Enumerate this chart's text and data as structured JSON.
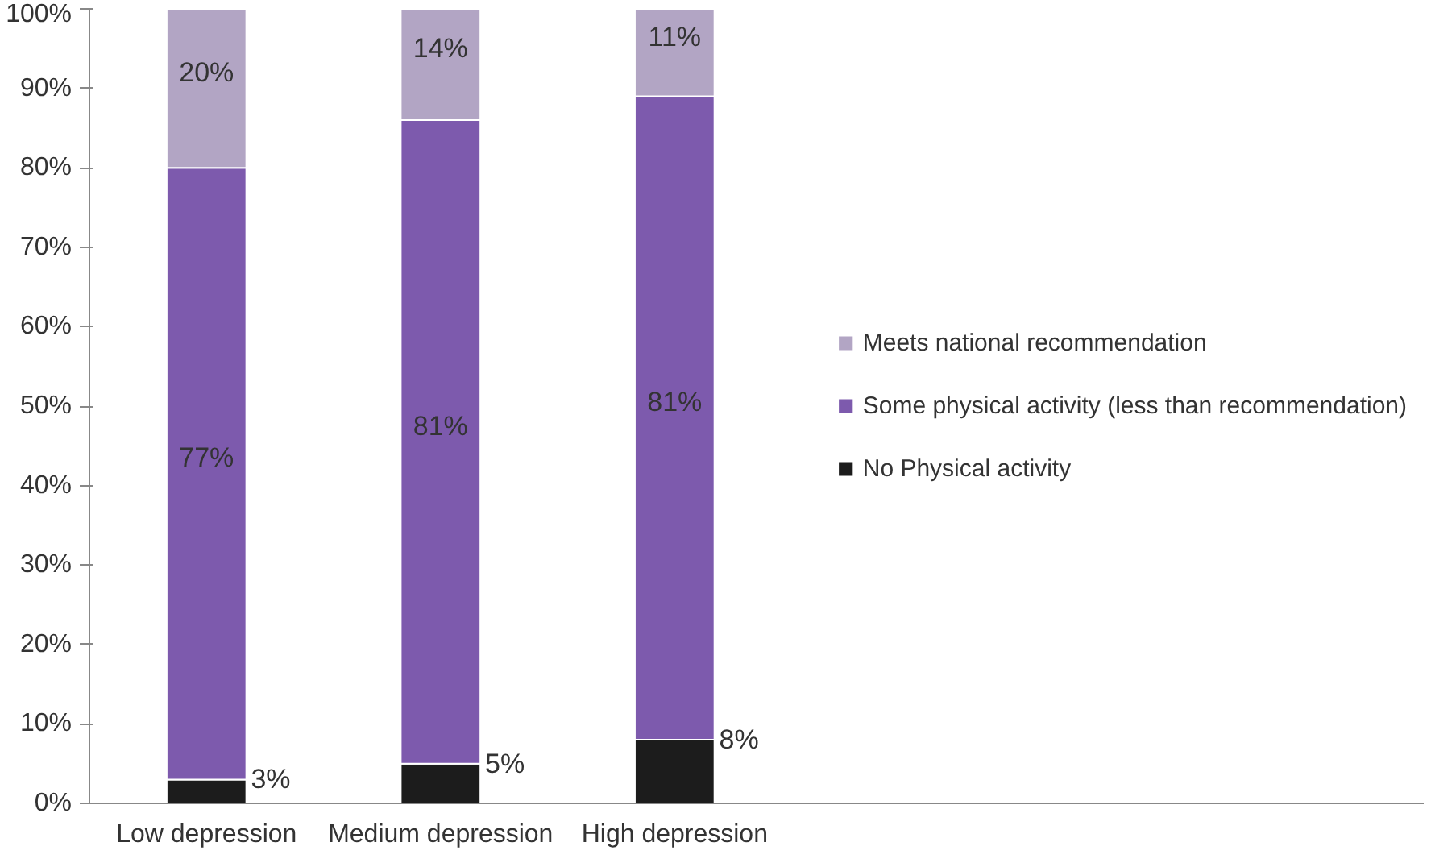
{
  "chart_data": {
    "type": "bar",
    "stacked": true,
    "categories": [
      "Low depression",
      "Medium depression",
      "High depression"
    ],
    "series": [
      {
        "name": "No Physical activity",
        "color": "#1c1c1c",
        "values": [
          3,
          5,
          8
        ],
        "value_labels": [
          "3%",
          "5%",
          "8%"
        ]
      },
      {
        "name": "Some physical activity (less than recommendation)",
        "color": "#7d5aad",
        "values": [
          77,
          81,
          81
        ],
        "value_labels": [
          "77%",
          "81%",
          "81%"
        ]
      },
      {
        "name": "Meets national recommendation",
        "color": "#b2a5c4",
        "values": [
          20,
          14,
          11
        ],
        "value_labels": [
          "20%",
          "14%",
          "11%"
        ]
      }
    ],
    "ylim": [
      0,
      100
    ],
    "yticks": [
      {
        "value": 0,
        "label": "0%"
      },
      {
        "value": 10,
        "label": "10%"
      },
      {
        "value": 20,
        "label": "20%"
      },
      {
        "value": 30,
        "label": "30%"
      },
      {
        "value": 40,
        "label": "40%"
      },
      {
        "value": 50,
        "label": "50%"
      },
      {
        "value": 60,
        "label": "60%"
      },
      {
        "value": 70,
        "label": "70%"
      },
      {
        "value": 80,
        "label": "80%"
      },
      {
        "value": 90,
        "label": "90%"
      },
      {
        "value": 100,
        "label": "100%"
      }
    ],
    "legend": "right",
    "grid": false
  }
}
